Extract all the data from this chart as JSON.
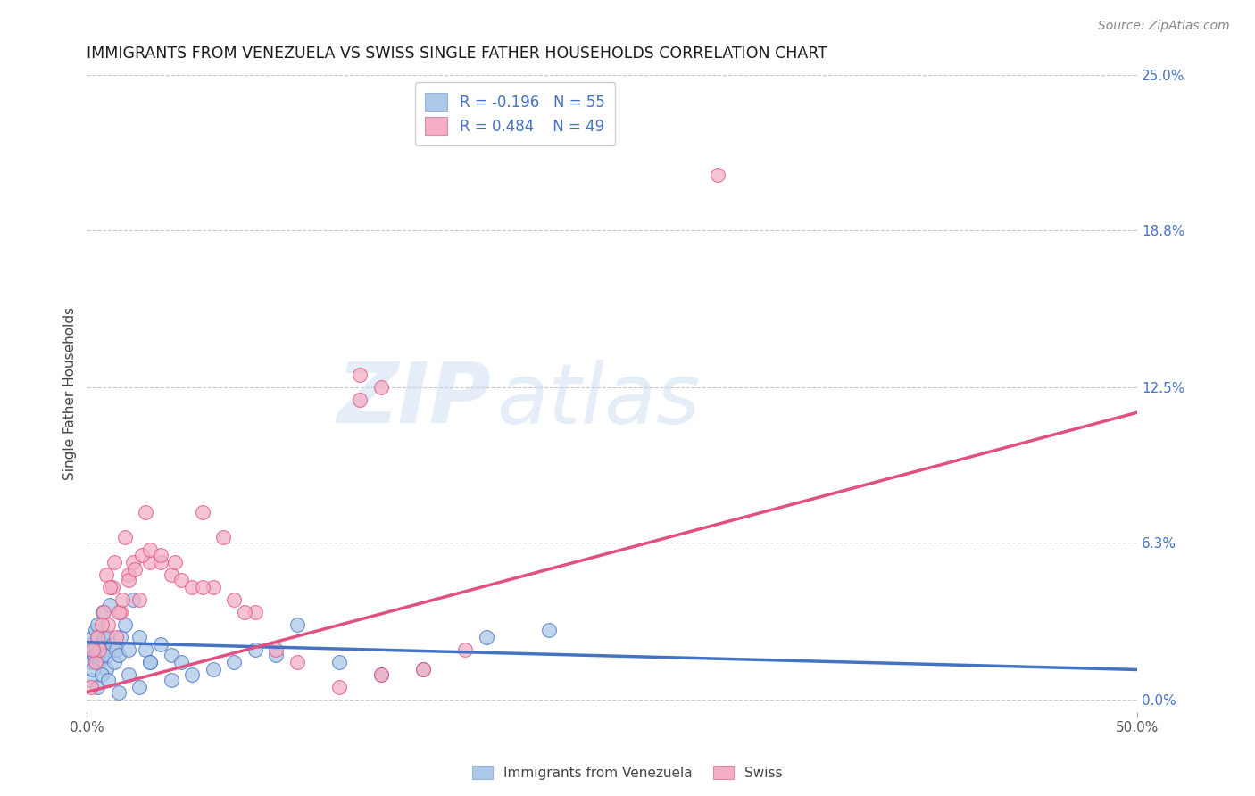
{
  "title": "IMMIGRANTS FROM VENEZUELA VS SWISS SINGLE FATHER HOUSEHOLDS CORRELATION CHART",
  "source": "Source: ZipAtlas.com",
  "ylabel": "Single Father Households",
  "ytick_vals": [
    0.0,
    6.3,
    12.5,
    18.8,
    25.0
  ],
  "xlim": [
    0.0,
    50.0
  ],
  "ylim": [
    -0.5,
    25.0
  ],
  "legend_label1": "Immigrants from Venezuela",
  "legend_label2": "Swiss",
  "r1": -0.196,
  "n1": 55,
  "r2": 0.484,
  "n2": 49,
  "color_blue": "#adc8e8",
  "color_pink": "#f4afc4",
  "line_blue": "#4472c4",
  "line_pink": "#e05080",
  "watermark_zip": "ZIP",
  "watermark_atlas": "atlas",
  "background": "#ffffff",
  "grid_color": "#c8c8c8",
  "blue_x": [
    0.1,
    0.15,
    0.2,
    0.25,
    0.3,
    0.35,
    0.4,
    0.45,
    0.5,
    0.55,
    0.6,
    0.65,
    0.7,
    0.75,
    0.8,
    0.85,
    0.9,
    0.95,
    1.0,
    1.1,
    1.2,
    1.3,
    1.4,
    1.5,
    1.6,
    1.8,
    2.0,
    2.2,
    2.5,
    2.8,
    3.0,
    3.5,
    4.0,
    4.5,
    5.0,
    6.0,
    7.0,
    8.0,
    9.0,
    10.0,
    12.0,
    14.0,
    16.0,
    19.0,
    22.0,
    0.2,
    0.3,
    0.5,
    0.7,
    1.0,
    1.5,
    2.0,
    2.5,
    3.0,
    4.0
  ],
  "blue_y": [
    1.8,
    2.0,
    2.2,
    1.5,
    2.5,
    1.8,
    2.8,
    2.0,
    3.0,
    2.5,
    1.5,
    2.2,
    1.8,
    3.5,
    2.0,
    2.5,
    1.2,
    1.8,
    2.5,
    3.8,
    2.2,
    1.5,
    2.0,
    1.8,
    2.5,
    3.0,
    2.0,
    4.0,
    2.5,
    2.0,
    1.5,
    2.2,
    1.8,
    1.5,
    1.0,
    1.2,
    1.5,
    2.0,
    1.8,
    3.0,
    1.5,
    1.0,
    1.2,
    2.5,
    2.8,
    0.8,
    1.2,
    0.5,
    1.0,
    0.8,
    0.3,
    1.0,
    0.5,
    1.5,
    0.8
  ],
  "pink_x": [
    0.2,
    0.4,
    0.6,
    0.8,
    1.0,
    1.2,
    1.4,
    1.6,
    1.8,
    2.0,
    2.2,
    2.5,
    2.8,
    3.0,
    3.5,
    4.0,
    4.5,
    5.0,
    5.5,
    6.0,
    6.5,
    7.0,
    8.0,
    10.0,
    12.0,
    13.0,
    14.0,
    16.0,
    18.0,
    0.3,
    0.5,
    0.7,
    0.9,
    1.1,
    1.3,
    1.5,
    1.7,
    2.0,
    2.3,
    2.6,
    3.0,
    3.5,
    4.2,
    5.5,
    7.5,
    9.0,
    13.0,
    30.0,
    14.0
  ],
  "pink_y": [
    0.5,
    1.5,
    2.0,
    3.5,
    3.0,
    4.5,
    2.5,
    3.5,
    6.5,
    5.0,
    5.5,
    4.0,
    7.5,
    5.5,
    5.5,
    5.0,
    4.8,
    4.5,
    7.5,
    4.5,
    6.5,
    4.0,
    3.5,
    1.5,
    0.5,
    13.0,
    12.5,
    1.2,
    2.0,
    2.0,
    2.5,
    3.0,
    5.0,
    4.5,
    5.5,
    3.5,
    4.0,
    4.8,
    5.2,
    5.8,
    6.0,
    5.8,
    5.5,
    4.5,
    3.5,
    2.0,
    12.0,
    21.0,
    1.0
  ],
  "blue_line_x0": 0.0,
  "blue_line_x1": 50.0,
  "blue_line_y0": 2.3,
  "blue_line_y1": 1.2,
  "pink_line_x0": 0.0,
  "pink_line_x1": 50.0,
  "pink_line_y0": 0.3,
  "pink_line_y1": 11.5
}
